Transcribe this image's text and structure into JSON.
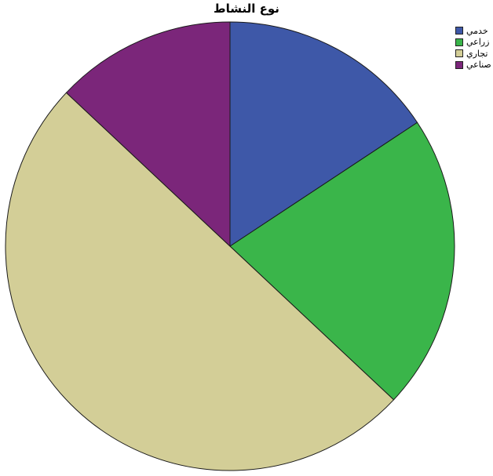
{
  "chart_data": {
    "type": "pie",
    "title": "نوع النشاط",
    "categories": [
      "خدمي",
      "زراعي",
      "تجاري",
      "صناعي"
    ],
    "values": [
      15.7,
      21.3,
      50.0,
      13.0
    ],
    "colors": [
      "#3e58a8",
      "#3ab54a",
      "#d3ce97",
      "#7b267a"
    ],
    "legend_position": "top-right"
  }
}
